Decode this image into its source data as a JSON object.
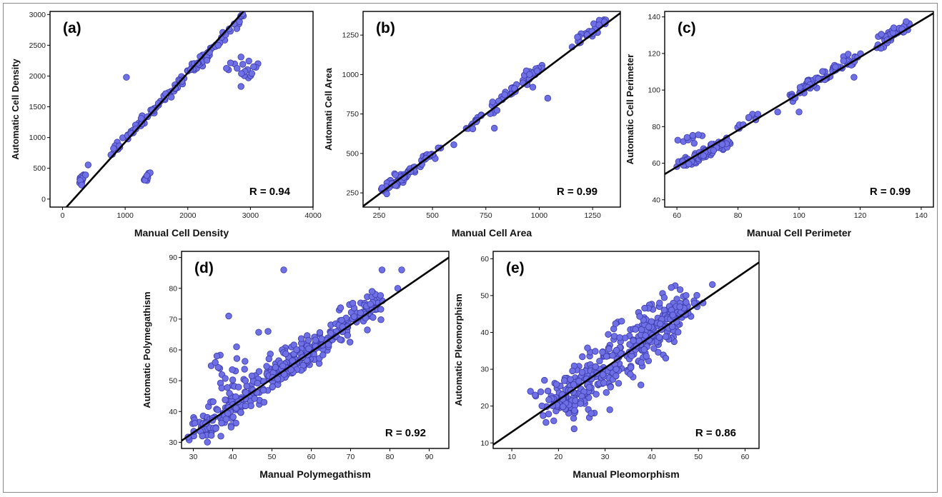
{
  "figure": {
    "marker_fill": "#6f6fe6",
    "marker_stroke": "#3a3aa8",
    "line_color": "#000000",
    "frame_color": "#8a8a8a"
  },
  "chart_data": [
    {
      "type": "scatter",
      "panel_label": "(a)",
      "xlabel": "Manual Cell Density",
      "ylabel": "Automatic Cell Density",
      "xlim": [
        -200,
        4000
      ],
      "ylim": [
        -130,
        3050
      ],
      "xticks": [
        0,
        1000,
        2000,
        3000,
        4000
      ],
      "yticks": [
        0,
        500,
        1000,
        1500,
        2000,
        2500,
        3000
      ],
      "r_label": "R = 0.94",
      "fit_line": [
        [
          0,
          -200
        ],
        [
          3200,
          3400
        ]
      ],
      "clusters": [
        {
          "kind": "band",
          "from": [
            780,
            760
          ],
          "to": [
            2880,
            2950
          ],
          "n": 110,
          "spread": 45,
          "seed": 1
        },
        {
          "kind": "band",
          "from": [
            280,
            280
          ],
          "to": [
            400,
            480
          ],
          "n": 14,
          "spread": 35,
          "seed": 2
        },
        {
          "kind": "band",
          "from": [
            1310,
            290
          ],
          "to": [
            1400,
            440
          ],
          "n": 14,
          "spread": 20,
          "seed": 3
        },
        {
          "kind": "blob",
          "center": [
            2840,
            2100
          ],
          "sx": 150,
          "sy": 120,
          "n": 16,
          "seed": 4
        }
      ],
      "points": [
        [
          1020,
          1980
        ],
        [
          2850,
          1830
        ],
        [
          3050,
          2150
        ],
        [
          2850,
          2310
        ]
      ]
    },
    {
      "type": "scatter",
      "panel_label": "(b)",
      "xlabel": "Manual Cell Area",
      "ylabel": "Automati Cell Area",
      "xlim": [
        175,
        1380
      ],
      "ylim": [
        160,
        1400
      ],
      "xticks": [
        250,
        500,
        750,
        1000,
        1250
      ],
      "yticks": [
        250,
        500,
        750,
        1000,
        1250
      ],
      "r_label": "R = 0.99",
      "fit_line": [
        [
          150,
          140
        ],
        [
          1400,
          1410
        ]
      ],
      "clusters": [
        {
          "kind": "band",
          "from": [
            260,
            260
          ],
          "to": [
            420,
            400
          ],
          "n": 55,
          "spread": 18,
          "seed": 5
        },
        {
          "kind": "band",
          "from": [
            440,
            430
          ],
          "to": [
            540,
            540
          ],
          "n": 18,
          "spread": 14,
          "seed": 6
        },
        {
          "kind": "band",
          "from": [
            660,
            650
          ],
          "to": [
            1010,
            1050
          ],
          "n": 55,
          "spread": 18,
          "seed": 7
        },
        {
          "kind": "band",
          "from": [
            1160,
            1180
          ],
          "to": [
            1310,
            1350
          ],
          "n": 30,
          "spread": 18,
          "seed": 8
        }
      ],
      "points": [
        [
          600,
          555
        ],
        [
          790,
          660
        ],
        [
          1040,
          850
        ],
        [
          970,
          920
        ]
      ]
    },
    {
      "type": "scatter",
      "panel_label": "(c)",
      "xlabel": "Manual Cell Perimeter",
      "ylabel": "Automatic Cell Perimeter",
      "xlim": [
        56,
        144
      ],
      "ylim": [
        36,
        143
      ],
      "xticks": [
        60,
        80,
        100,
        120,
        140
      ],
      "yticks": [
        40,
        60,
        80,
        100,
        120,
        140
      ],
      "r_label": "R = 0.99",
      "fit_line": [
        [
          55,
          53
        ],
        [
          145,
          143
        ]
      ],
      "clusters": [
        {
          "kind": "band",
          "from": [
            61,
            59
          ],
          "to": [
            78,
            73
          ],
          "n": 90,
          "spread": 1.6,
          "seed": 9
        },
        {
          "kind": "band",
          "from": [
            79,
            79
          ],
          "to": [
            87,
            86
          ],
          "n": 12,
          "spread": 1.2,
          "seed": 10
        },
        {
          "kind": "band",
          "from": [
            97,
            96
          ],
          "to": [
            119,
            118
          ],
          "n": 70,
          "spread": 1.8,
          "seed": 11
        },
        {
          "kind": "band",
          "from": [
            125,
            125
          ],
          "to": [
            137,
            136
          ],
          "n": 40,
          "spread": 1.8,
          "seed": 12
        },
        {
          "kind": "blob",
          "center": [
            64,
            75
          ],
          "sx": 2.0,
          "sy": 2.0,
          "n": 9,
          "seed": 13
        }
      ],
      "points": [
        [
          100,
          88
        ],
        [
          118,
          107
        ],
        [
          131,
          134
        ],
        [
          93,
          88
        ]
      ]
    },
    {
      "type": "scatter",
      "panel_label": "(d)",
      "xlabel": "Manual Polymegathism",
      "ylabel": "Automatic Polymegathism",
      "xlim": [
        27,
        95
      ],
      "ylim": [
        28,
        92
      ],
      "xticks": [
        30,
        40,
        50,
        60,
        70,
        80,
        90
      ],
      "yticks": [
        30,
        40,
        50,
        60,
        70,
        80,
        90
      ],
      "r_label": "R = 0.92",
      "fit_line": [
        [
          27,
          30.5
        ],
        [
          95,
          90
        ]
      ],
      "clusters": [
        {
          "kind": "band",
          "from": [
            30,
            32.5
          ],
          "to": [
            78,
            76.5
          ],
          "n": 380,
          "spread": 2.6,
          "seed": 14
        },
        {
          "kind": "blob",
          "center": [
            40,
            52
          ],
          "sx": 3.5,
          "sy": 4.5,
          "n": 22,
          "seed": 15
        },
        {
          "kind": "blob",
          "center": [
            52,
            60
          ],
          "sx": 4.0,
          "sy": 3.0,
          "n": 14,
          "seed": 16
        }
      ],
      "points": [
        [
          39,
          71
        ],
        [
          53,
          86
        ],
        [
          78,
          86
        ],
        [
          83,
          86
        ],
        [
          82,
          80
        ],
        [
          36,
          58
        ],
        [
          41,
          61
        ],
        [
          49,
          66
        ],
        [
          48,
          43
        ],
        [
          37,
          32
        ]
      ]
    },
    {
      "type": "scatter",
      "panel_label": "(e)",
      "xlabel": "Manual Pleomorphism",
      "ylabel": "Automatic Pleomorphism",
      "xlim": [
        6,
        63
      ],
      "ylim": [
        8.5,
        62
      ],
      "xticks": [
        10,
        20,
        30,
        40,
        50,
        60
      ],
      "yticks": [
        10,
        20,
        30,
        40,
        50,
        60
      ],
      "r_label": "R = 0.86",
      "fit_line": [
        [
          6,
          9.5
        ],
        [
          63,
          59
        ]
      ],
      "clusters": [
        {
          "kind": "band",
          "from": [
            20,
            20
          ],
          "to": [
            46,
            46
          ],
          "n": 340,
          "spread": 3.4,
          "seed": 17
        },
        {
          "kind": "blob",
          "center": [
            20,
            21.5
          ],
          "sx": 2.0,
          "sy": 1.8,
          "n": 35,
          "seed": 18
        },
        {
          "kind": "band",
          "from": [
            44,
            44
          ],
          "to": [
            50,
            48
          ],
          "n": 14,
          "spread": 1.0,
          "seed": 19
        }
      ],
      "points": [
        [
          14,
          24
        ],
        [
          15,
          23
        ],
        [
          17,
          27
        ],
        [
          19,
          16
        ],
        [
          53,
          53
        ],
        [
          51,
          48
        ],
        [
          43,
          33
        ],
        [
          27,
          18
        ],
        [
          31,
          19
        ]
      ]
    }
  ]
}
